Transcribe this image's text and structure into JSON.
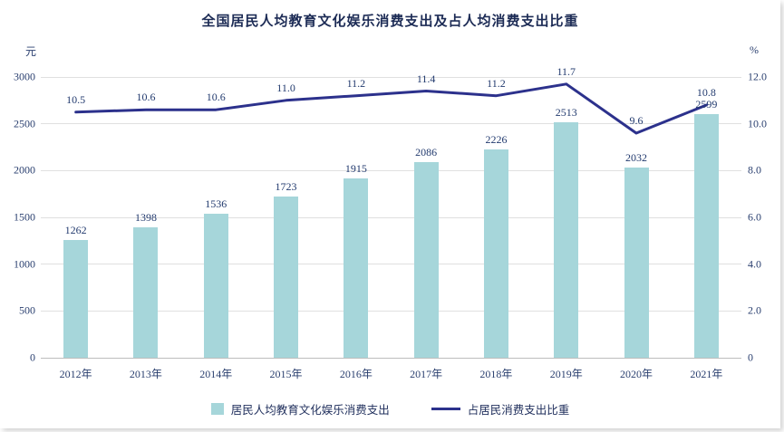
{
  "title": "全国居民人均教育文化娱乐消费支出及占人均消费支出比重",
  "left_axis": {
    "unit": "元",
    "ticks": [
      "0",
      "500",
      "1000",
      "1500",
      "2000",
      "2500",
      "3000"
    ],
    "max": 3000
  },
  "right_axis": {
    "unit": "%",
    "ticks": [
      "0",
      "2.0",
      "4.0",
      "6.0",
      "8.0",
      "10.0",
      "12.0"
    ],
    "max": 12
  },
  "legend": [
    {
      "label": "居民人均教育文化娱乐消费支出",
      "type": "bar"
    },
    {
      "label": "占居民消费支出比重",
      "type": "line"
    }
  ],
  "colors": {
    "bar": "#a6d6da",
    "line": "#2c318c",
    "label_text": "#223a6e",
    "tick_text": "#2a3f6f"
  },
  "chart_data": {
    "type": "bar+line",
    "title": "全国居民人均教育文化娱乐消费支出及占人均消费支出比重",
    "categories": [
      "2012年",
      "2013年",
      "2014年",
      "2015年",
      "2016年",
      "2017年",
      "2018年",
      "2019年",
      "2020年",
      "2021年"
    ],
    "series": [
      {
        "name": "居民人均教育文化娱乐消费支出",
        "type": "bar",
        "axis": "left",
        "values": [
          1262,
          1398,
          1536,
          1723,
          1915,
          2086,
          2226,
          2513,
          2032,
          2599
        ],
        "labels": [
          "1262",
          "1398",
          "1536",
          "1723",
          "1915",
          "2086",
          "2226",
          "2513",
          "2032",
          "2599"
        ]
      },
      {
        "name": "占居民消费支出比重",
        "type": "line",
        "axis": "right",
        "values": [
          10.5,
          10.6,
          10.6,
          11.0,
          11.2,
          11.4,
          11.2,
          11.7,
          9.6,
          10.8
        ],
        "labels": [
          "10.5",
          "10.6",
          "10.6",
          "11.0",
          "11.2",
          "11.4",
          "11.2",
          "11.7",
          "9.6",
          "10.8"
        ]
      }
    ],
    "left_ylim": [
      0,
      3000
    ],
    "right_ylim": [
      0,
      12
    ],
    "grid": true,
    "legend_position": "bottom"
  }
}
